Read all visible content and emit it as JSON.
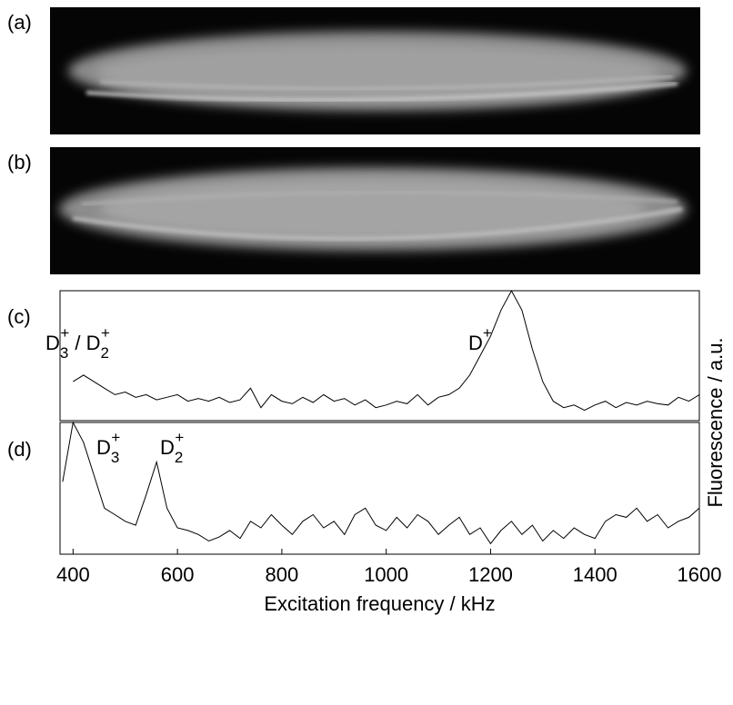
{
  "images": [
    {
      "label": "(a)"
    },
    {
      "label": "(b)"
    }
  ],
  "chart_data": [
    {
      "type": "line",
      "label": "(c)",
      "annotations": [
        [
          {
            "t": "D"
          },
          {
            "sub": "3"
          },
          {
            "sup": "+"
          },
          {
            "t": " / D"
          },
          {
            "sub": "2"
          },
          {
            "sup": "+"
          }
        ],
        [
          {
            "t": "D"
          },
          {
            "sup": "+"
          }
        ]
      ],
      "xlim": [
        375,
        1600
      ],
      "ylim": [
        0,
        1
      ],
      "color": "#000000",
      "x": [
        400,
        420,
        440,
        460,
        480,
        500,
        520,
        540,
        560,
        580,
        600,
        620,
        640,
        660,
        680,
        700,
        720,
        740,
        760,
        780,
        800,
        820,
        840,
        860,
        880,
        900,
        920,
        940,
        960,
        980,
        1000,
        1020,
        1040,
        1060,
        1080,
        1100,
        1120,
        1140,
        1160,
        1180,
        1200,
        1220,
        1240,
        1260,
        1280,
        1300,
        1320,
        1340,
        1360,
        1380,
        1400,
        1420,
        1440,
        1460,
        1480,
        1500,
        1520,
        1540,
        1560,
        1580,
        1600
      ],
      "values": [
        0.3,
        0.35,
        0.3,
        0.25,
        0.2,
        0.22,
        0.18,
        0.2,
        0.16,
        0.18,
        0.2,
        0.15,
        0.17,
        0.15,
        0.18,
        0.14,
        0.16,
        0.25,
        0.1,
        0.2,
        0.15,
        0.13,
        0.18,
        0.14,
        0.2,
        0.15,
        0.17,
        0.12,
        0.16,
        0.1,
        0.12,
        0.15,
        0.13,
        0.2,
        0.12,
        0.18,
        0.2,
        0.25,
        0.35,
        0.5,
        0.65,
        0.85,
        1.0,
        0.85,
        0.55,
        0.3,
        0.15,
        0.1,
        0.12,
        0.08,
        0.12,
        0.15,
        0.1,
        0.14,
        0.12,
        0.15,
        0.13,
        0.12,
        0.18,
        0.15,
        0.2
      ]
    },
    {
      "type": "line",
      "label": "(d)",
      "annotations": [
        [
          {
            "t": "D"
          },
          {
            "sub": "3"
          },
          {
            "sup": "+"
          }
        ],
        [
          {
            "t": "D"
          },
          {
            "sub": "2"
          },
          {
            "sup": "+"
          }
        ]
      ],
      "xlim": [
        375,
        1600
      ],
      "ylim": [
        0,
        1
      ],
      "color": "#000000",
      "xticks": [
        400,
        600,
        800,
        1000,
        1200,
        1400,
        1600
      ],
      "xlabel": "Excitation frequency / kHz",
      "ylabel": "Fluorescence / a.u.",
      "x": [
        380,
        400,
        420,
        440,
        460,
        480,
        500,
        520,
        540,
        560,
        580,
        600,
        620,
        640,
        660,
        680,
        700,
        720,
        740,
        760,
        780,
        800,
        820,
        840,
        860,
        880,
        900,
        920,
        940,
        960,
        980,
        1000,
        1020,
        1040,
        1060,
        1080,
        1100,
        1120,
        1140,
        1160,
        1180,
        1200,
        1220,
        1240,
        1260,
        1280,
        1300,
        1320,
        1340,
        1360,
        1380,
        1400,
        1420,
        1440,
        1460,
        1480,
        1500,
        1520,
        1540,
        1560,
        1580,
        1600
      ],
      "values": [
        0.55,
        1.0,
        0.85,
        0.6,
        0.35,
        0.3,
        0.25,
        0.22,
        0.45,
        0.7,
        0.35,
        0.2,
        0.18,
        0.15,
        0.1,
        0.13,
        0.18,
        0.12,
        0.25,
        0.2,
        0.3,
        0.22,
        0.15,
        0.25,
        0.3,
        0.2,
        0.25,
        0.15,
        0.3,
        0.35,
        0.22,
        0.18,
        0.28,
        0.2,
        0.3,
        0.25,
        0.15,
        0.22,
        0.28,
        0.15,
        0.2,
        0.08,
        0.18,
        0.25,
        0.15,
        0.22,
        0.1,
        0.18,
        0.12,
        0.2,
        0.15,
        0.12,
        0.25,
        0.3,
        0.28,
        0.35,
        0.25,
        0.3,
        0.2,
        0.25,
        0.28,
        0.35
      ]
    }
  ]
}
